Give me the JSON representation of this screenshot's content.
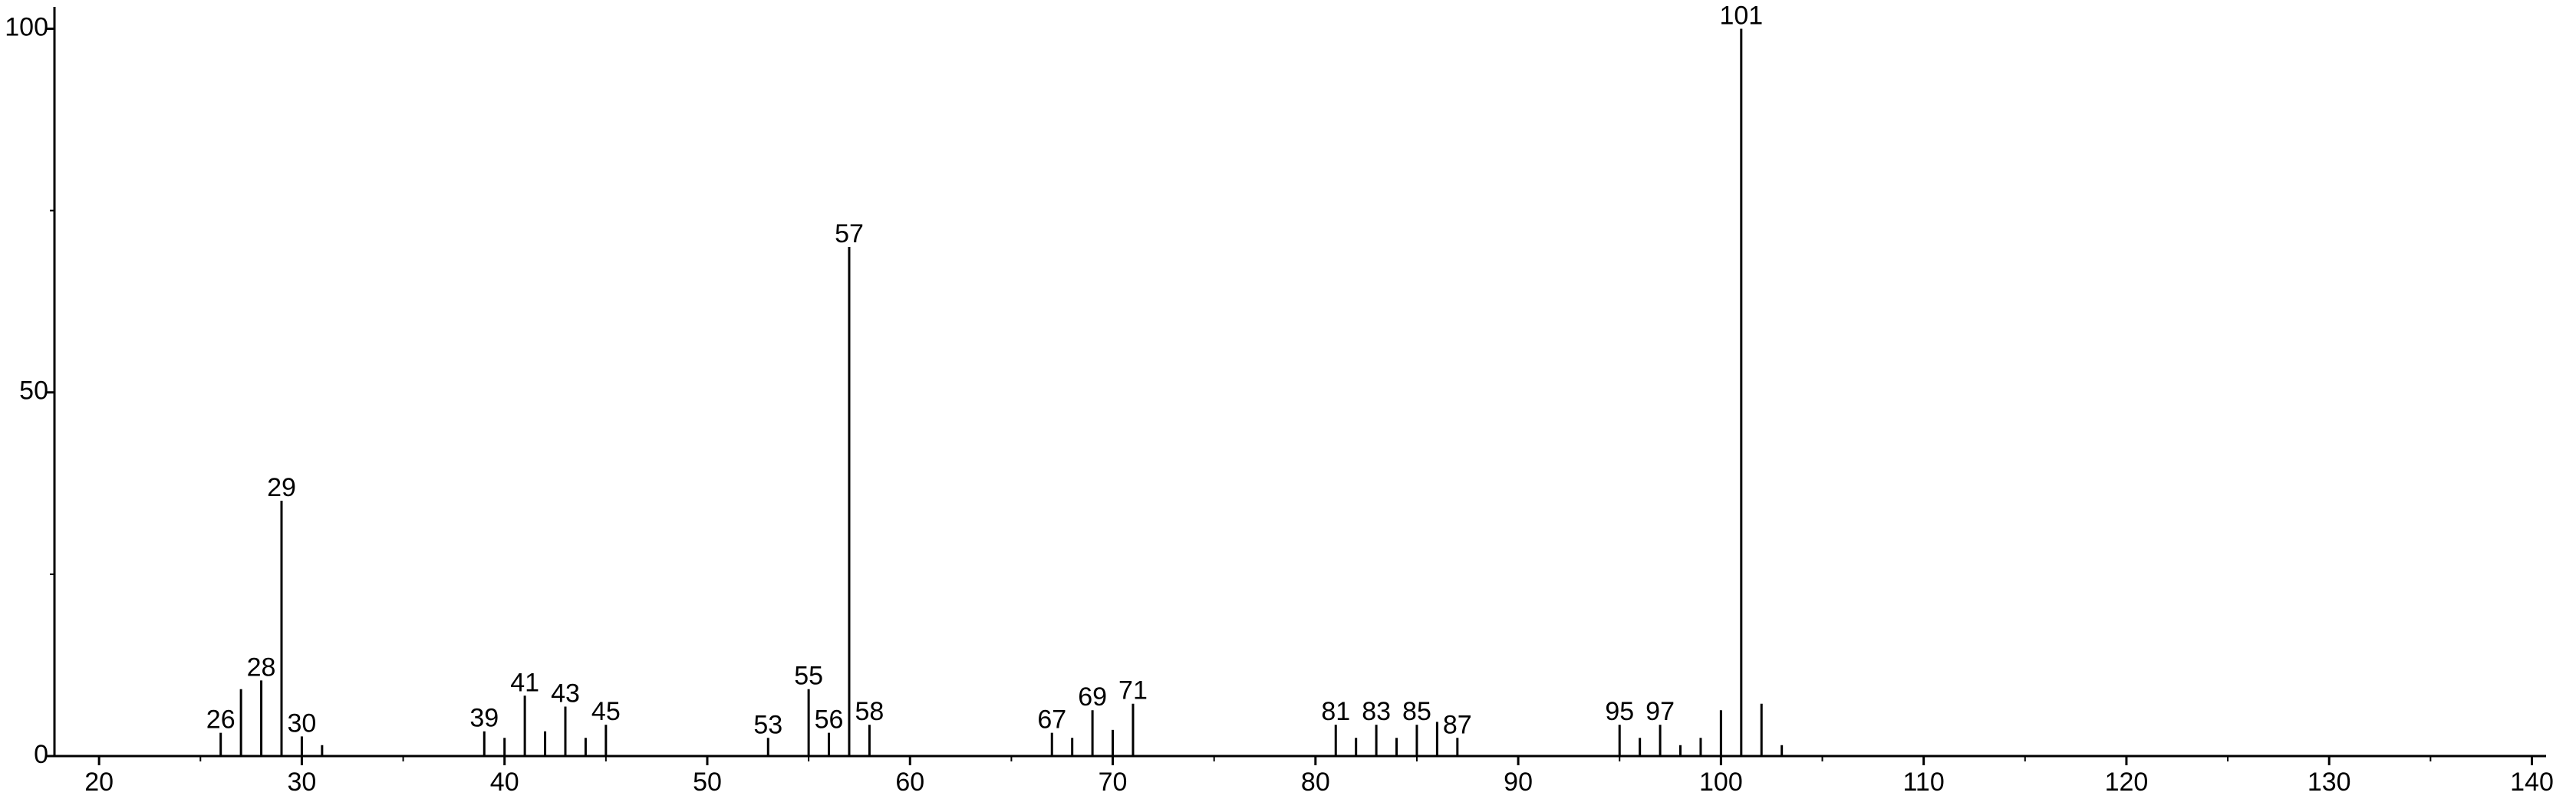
{
  "chart_data": {
    "type": "stem",
    "x": [
      26,
      27,
      28,
      29,
      30,
      31,
      39,
      40,
      41,
      42,
      43,
      44,
      45,
      53,
      55,
      56,
      57,
      58,
      67,
      68,
      69,
      70,
      71,
      81,
      82,
      83,
      84,
      85,
      86,
      87,
      95,
      96,
      97,
      98,
      99,
      100,
      101,
      102,
      103
    ],
    "values": [
      3.2,
      9.2,
      10.4,
      35.1,
      2.7,
      1.5,
      3.4,
      2.5,
      8.3,
      3.4,
      6.8,
      2.5,
      4.3,
      2.5,
      9.2,
      3.2,
      70,
      4.3,
      3.2,
      2.5,
      6.3,
      3.6,
      7.2,
      4.3,
      2.5,
      4.3,
      2.5,
      4.3,
      4.7,
      2.5,
      4.3,
      2.5,
      4.3,
      1.5,
      2.5,
      6.3,
      100,
      7.2,
      1.5
    ],
    "labels": [
      26,
      null,
      28,
      29,
      30,
      null,
      39,
      null,
      41,
      null,
      43,
      null,
      45,
      53,
      55,
      56,
      57,
      58,
      67,
      null,
      69,
      null,
      71,
      81,
      null,
      83,
      null,
      85,
      null,
      87,
      95,
      null,
      97,
      null,
      null,
      null,
      101,
      null,
      null
    ],
    "color": "#000000",
    "xlim": [
      17.8,
      140.7
    ],
    "xticks": [
      20,
      30,
      40,
      50,
      60,
      70,
      80,
      90,
      100,
      110,
      120,
      130,
      140
    ],
    "xminorticks": [
      25,
      35,
      45,
      55,
      65,
      75,
      85,
      95,
      105,
      115,
      125,
      135
    ],
    "ylim": [
      0,
      103
    ],
    "yticks": [
      0,
      50,
      100
    ],
    "yminorticks": [
      25,
      75
    ]
  }
}
